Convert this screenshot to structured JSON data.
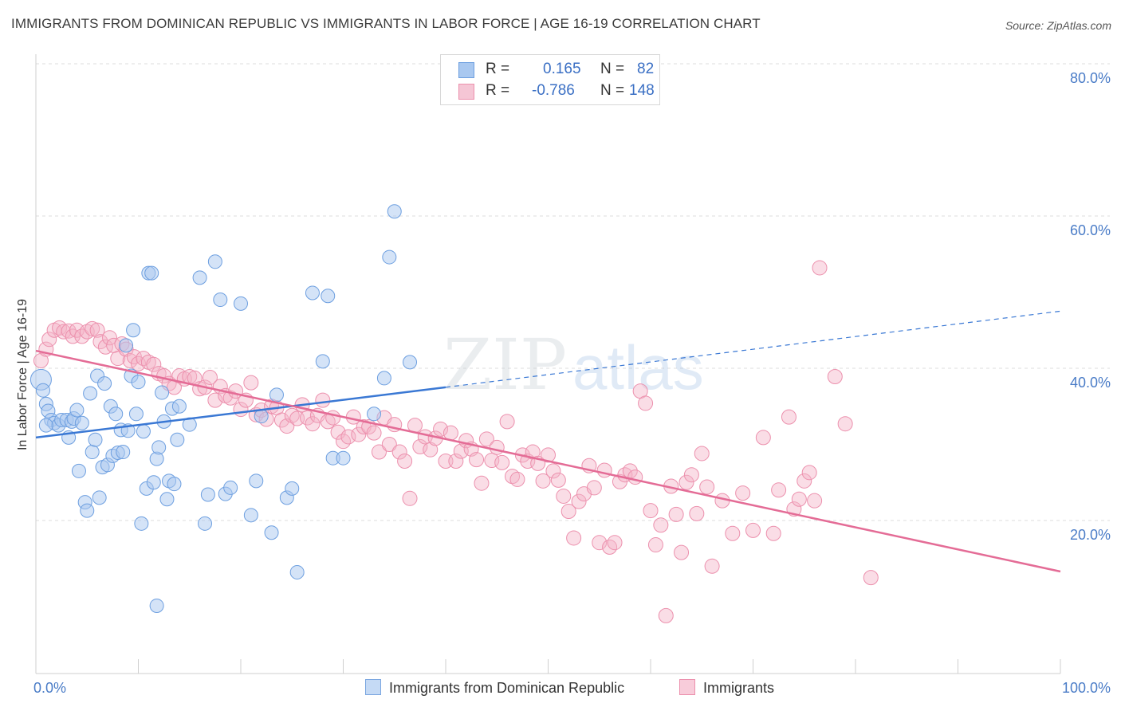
{
  "title": "IMMIGRANTS FROM DOMINICAN REPUBLIC VS IMMIGRANTS IN LABOR FORCE | AGE 16-19 CORRELATION CHART",
  "source": "Source: ZipAtlas.com",
  "watermark": {
    "zip": "ZIP",
    "atlas": "atlas"
  },
  "legend": {
    "rows": [
      {
        "r_label": "R =",
        "r_value": "0.165",
        "n_label": "N =",
        "n_value": "82",
        "color": "#a9c8f0"
      },
      {
        "r_label": "R =",
        "r_value": "-0.786",
        "n_label": "N =",
        "n_value": "148",
        "color": "#f5b3c8"
      }
    ]
  },
  "bottom_legend": [
    {
      "label": "Immigrants from Dominican Republic",
      "color": "#a9c8f0"
    },
    {
      "label": "Immigrants",
      "color": "#f5b3c8"
    }
  ],
  "chart_data": {
    "type": "scatter",
    "title": "IMMIGRANTS FROM DOMINICAN REPUBLIC VS IMMIGRANTS IN LABOR FORCE | AGE 16-19 CORRELATION CHART",
    "xlabel": "",
    "ylabel": "In Labor Force | Age 16-19",
    "xlim": [
      0,
      100
    ],
    "ylim": [
      0,
      83
    ],
    "x_tick_labels": [
      "0.0%",
      "100.0%"
    ],
    "y_ticks": [
      20,
      40,
      60,
      80
    ],
    "y_tick_labels": [
      "20.0%",
      "40.0%",
      "60.0%",
      "80.0%"
    ],
    "grid": true,
    "colors": {
      "blue_point": "#a9c8f0",
      "blue_stroke": "#6d9fe0",
      "blue_line": "#3a78d4",
      "pink_point": "#f5b3c8",
      "pink_stroke": "#ec90ad",
      "pink_line": "#e46c96"
    },
    "series": [
      {
        "name": "Immigrants from Dominican Republic",
        "R": 0.165,
        "N": 82,
        "trend": {
          "x0": 0,
          "y0": 30.9,
          "x1": 40,
          "y1": 37.5,
          "dashed_to_x": 100,
          "dashed_to_y": 47.5
        },
        "points": [
          [
            0.5,
            38.5
          ],
          [
            0.7,
            37.1
          ],
          [
            1.0,
            35.3
          ],
          [
            1.2,
            34.4
          ],
          [
            1.5,
            33.2
          ],
          [
            1.8,
            32.8
          ],
          [
            2.2,
            32.5
          ],
          [
            2.5,
            33.2
          ],
          [
            3.0,
            33.2
          ],
          [
            3.2,
            30.9
          ],
          [
            3.5,
            33.0
          ],
          [
            3.7,
            33.4
          ],
          [
            4.0,
            34.5
          ],
          [
            4.2,
            26.5
          ],
          [
            4.5,
            32.8
          ],
          [
            4.8,
            22.4
          ],
          [
            5.0,
            21.3
          ],
          [
            5.3,
            36.7
          ],
          [
            5.5,
            29.0
          ],
          [
            5.8,
            30.6
          ],
          [
            6.0,
            39.0
          ],
          [
            6.2,
            23.0
          ],
          [
            6.5,
            27.0
          ],
          [
            6.7,
            38.0
          ],
          [
            7.0,
            27.3
          ],
          [
            7.3,
            35.0
          ],
          [
            7.5,
            28.5
          ],
          [
            7.8,
            34.0
          ],
          [
            8.0,
            28.9
          ],
          [
            8.3,
            31.9
          ],
          [
            8.5,
            29.0
          ],
          [
            8.8,
            43.0
          ],
          [
            9.0,
            31.8
          ],
          [
            9.3,
            39.0
          ],
          [
            9.5,
            45.0
          ],
          [
            9.8,
            34.0
          ],
          [
            10.0,
            38.2
          ],
          [
            10.3,
            19.6
          ],
          [
            10.5,
            31.7
          ],
          [
            10.8,
            24.2
          ],
          [
            11.0,
            52.5
          ],
          [
            11.3,
            52.5
          ],
          [
            11.5,
            25.0
          ],
          [
            11.8,
            28.1
          ],
          [
            12.0,
            29.6
          ],
          [
            12.3,
            36.8
          ],
          [
            12.5,
            33.0
          ],
          [
            12.8,
            22.8
          ],
          [
            13.0,
            25.2
          ],
          [
            13.3,
            34.7
          ],
          [
            13.5,
            24.8
          ],
          [
            13.8,
            30.6
          ],
          [
            14.0,
            35.0
          ],
          [
            15.0,
            32.6
          ],
          [
            16.0,
            51.9
          ],
          [
            16.5,
            19.6
          ],
          [
            16.8,
            23.4
          ],
          [
            17.5,
            54.0
          ],
          [
            18.0,
            49.0
          ],
          [
            18.5,
            23.5
          ],
          [
            19.0,
            24.3
          ],
          [
            20.0,
            48.5
          ],
          [
            21.0,
            20.7
          ],
          [
            21.5,
            25.2
          ],
          [
            22.0,
            33.7
          ],
          [
            23.0,
            18.4
          ],
          [
            23.5,
            36.5
          ],
          [
            24.5,
            23.0
          ],
          [
            25.0,
            24.2
          ],
          [
            25.5,
            13.2
          ],
          [
            27.0,
            49.9
          ],
          [
            28.0,
            40.9
          ],
          [
            28.5,
            49.5
          ],
          [
            29.0,
            28.2
          ],
          [
            30.0,
            28.2
          ],
          [
            33.0,
            34.0
          ],
          [
            34.0,
            38.7
          ],
          [
            34.5,
            54.6
          ],
          [
            35.0,
            60.6
          ],
          [
            36.5,
            40.8
          ],
          [
            11.8,
            8.8
          ],
          [
            1.0,
            32.5
          ]
        ]
      },
      {
        "name": "Immigrants",
        "R": -0.786,
        "N": 148,
        "trend": {
          "x0": 0,
          "y0": 42.3,
          "x1": 100,
          "y1": 13.3
        },
        "points": [
          [
            0.5,
            41.0
          ],
          [
            1.0,
            42.5
          ],
          [
            1.3,
            43.8
          ],
          [
            1.8,
            45.0
          ],
          [
            2.3,
            45.3
          ],
          [
            2.7,
            44.8
          ],
          [
            3.2,
            44.9
          ],
          [
            3.6,
            44.2
          ],
          [
            4.0,
            45.0
          ],
          [
            4.5,
            44.2
          ],
          [
            5.0,
            44.8
          ],
          [
            5.5,
            45.2
          ],
          [
            6.0,
            45.0
          ],
          [
            6.3,
            43.5
          ],
          [
            6.8,
            42.8
          ],
          [
            7.2,
            44.0
          ],
          [
            7.6,
            43.0
          ],
          [
            8.0,
            41.3
          ],
          [
            8.4,
            43.2
          ],
          [
            8.8,
            42.5
          ],
          [
            9.2,
            41.0
          ],
          [
            9.6,
            41.5
          ],
          [
            10.0,
            40.6
          ],
          [
            10.5,
            41.3
          ],
          [
            11.0,
            40.8
          ],
          [
            11.5,
            40.5
          ],
          [
            12.0,
            39.3
          ],
          [
            12.5,
            39.0
          ],
          [
            13.0,
            38.0
          ],
          [
            13.5,
            37.5
          ],
          [
            14.0,
            39.0
          ],
          [
            14.5,
            38.6
          ],
          [
            15.0,
            38.9
          ],
          [
            15.5,
            38.7
          ],
          [
            16.0,
            37.3
          ],
          [
            16.5,
            37.5
          ],
          [
            17.0,
            38.8
          ],
          [
            17.5,
            35.8
          ],
          [
            18.0,
            37.6
          ],
          [
            18.5,
            36.4
          ],
          [
            19.0,
            36.1
          ],
          [
            19.5,
            37.0
          ],
          [
            20.0,
            34.6
          ],
          [
            20.5,
            35.8
          ],
          [
            21.0,
            38.1
          ],
          [
            21.5,
            33.9
          ],
          [
            22.0,
            34.5
          ],
          [
            22.5,
            33.3
          ],
          [
            23.0,
            35.0
          ],
          [
            23.5,
            34.8
          ],
          [
            24.0,
            33.2
          ],
          [
            24.5,
            32.4
          ],
          [
            25.0,
            33.8
          ],
          [
            25.5,
            33.4
          ],
          [
            26.0,
            35.2
          ],
          [
            26.5,
            33.5
          ],
          [
            27.0,
            32.7
          ],
          [
            27.5,
            33.8
          ],
          [
            28.0,
            35.8
          ],
          [
            28.5,
            33.0
          ],
          [
            29.0,
            33.5
          ],
          [
            29.5,
            31.6
          ],
          [
            30.0,
            30.4
          ],
          [
            30.5,
            31.0
          ],
          [
            31.0,
            33.6
          ],
          [
            31.5,
            31.3
          ],
          [
            32.0,
            32.3
          ],
          [
            32.5,
            32.3
          ],
          [
            33.0,
            31.5
          ],
          [
            33.5,
            29.0
          ],
          [
            34.0,
            33.5
          ],
          [
            34.5,
            30.0
          ],
          [
            35.0,
            32.6
          ],
          [
            35.5,
            29.0
          ],
          [
            36.0,
            27.8
          ],
          [
            36.5,
            22.9
          ],
          [
            37.0,
            32.5
          ],
          [
            37.5,
            29.7
          ],
          [
            38.0,
            31.0
          ],
          [
            38.5,
            29.3
          ],
          [
            39.0,
            30.8
          ],
          [
            39.5,
            32.0
          ],
          [
            40.0,
            27.8
          ],
          [
            40.5,
            31.5
          ],
          [
            41.0,
            27.8
          ],
          [
            41.5,
            29.1
          ],
          [
            42.0,
            30.5
          ],
          [
            42.5,
            29.4
          ],
          [
            43.0,
            28.0
          ],
          [
            43.5,
            24.9
          ],
          [
            44.0,
            30.7
          ],
          [
            44.5,
            27.9
          ],
          [
            45.0,
            29.6
          ],
          [
            45.5,
            27.6
          ],
          [
            46.0,
            33.0
          ],
          [
            46.5,
            25.8
          ],
          [
            47.0,
            25.4
          ],
          [
            47.5,
            28.6
          ],
          [
            48.0,
            27.8
          ],
          [
            48.5,
            29.0
          ],
          [
            49.0,
            27.5
          ],
          [
            49.5,
            25.2
          ],
          [
            50.0,
            28.6
          ],
          [
            50.5,
            26.5
          ],
          [
            51.0,
            25.3
          ],
          [
            51.5,
            23.2
          ],
          [
            52.0,
            21.2
          ],
          [
            52.5,
            17.7
          ],
          [
            53.0,
            22.5
          ],
          [
            53.5,
            23.5
          ],
          [
            54.0,
            27.2
          ],
          [
            54.5,
            24.3
          ],
          [
            55.0,
            17.1
          ],
          [
            55.5,
            26.6
          ],
          [
            56.0,
            16.5
          ],
          [
            56.5,
            17.1
          ],
          [
            57.0,
            25.1
          ],
          [
            57.5,
            26.0
          ],
          [
            58.0,
            26.5
          ],
          [
            58.5,
            25.7
          ],
          [
            59.0,
            37.0
          ],
          [
            59.5,
            35.4
          ],
          [
            60.0,
            21.3
          ],
          [
            60.5,
            16.8
          ],
          [
            61.0,
            19.4
          ],
          [
            61.5,
            7.5
          ],
          [
            62.0,
            24.5
          ],
          [
            62.5,
            20.8
          ],
          [
            63.0,
            15.8
          ],
          [
            63.5,
            25.0
          ],
          [
            64.0,
            26.0
          ],
          [
            64.5,
            20.9
          ],
          [
            65.0,
            28.8
          ],
          [
            65.5,
            24.4
          ],
          [
            66.0,
            14.0
          ],
          [
            67.0,
            22.6
          ],
          [
            68.0,
            18.3
          ],
          [
            69.0,
            23.6
          ],
          [
            70.0,
            18.7
          ],
          [
            71.0,
            30.9
          ],
          [
            72.0,
            18.3
          ],
          [
            72.5,
            24.0
          ],
          [
            73.5,
            33.6
          ],
          [
            74.0,
            21.5
          ],
          [
            74.5,
            22.8
          ],
          [
            75.0,
            25.2
          ],
          [
            75.5,
            26.3
          ],
          [
            76.0,
            22.6
          ],
          [
            76.5,
            53.2
          ],
          [
            78.0,
            38.9
          ],
          [
            79.0,
            32.7
          ],
          [
            81.5,
            12.5
          ]
        ]
      }
    ]
  }
}
